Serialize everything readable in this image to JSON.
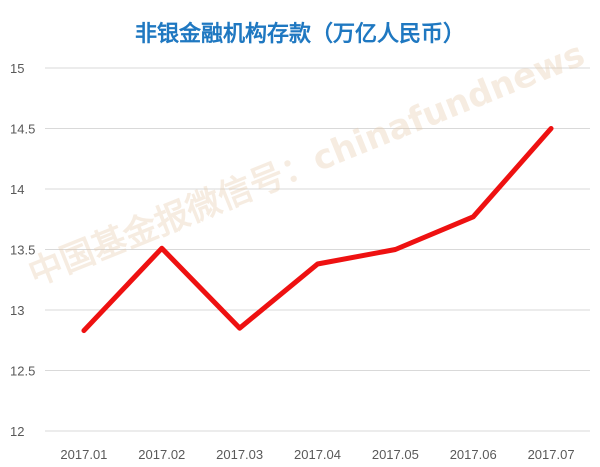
{
  "chart_data": {
    "type": "line",
    "title": "非银金融机构存款（万亿人民币）",
    "categories": [
      "2017.01",
      "2017.02",
      "2017.03",
      "2017.04",
      "2017.05",
      "2017.06",
      "2017.07"
    ],
    "values": [
      12.83,
      13.51,
      12.85,
      13.38,
      13.5,
      13.77,
      14.5
    ],
    "ylim": [
      12,
      15
    ],
    "yticks": [
      "12",
      "12.5",
      "13",
      "13.5",
      "14",
      "14.5",
      "15"
    ],
    "grid": true,
    "line_color": "#ee1111",
    "title_color": "#1f78c1"
  },
  "watermark": "中国基金报微信号：chinafundnews"
}
